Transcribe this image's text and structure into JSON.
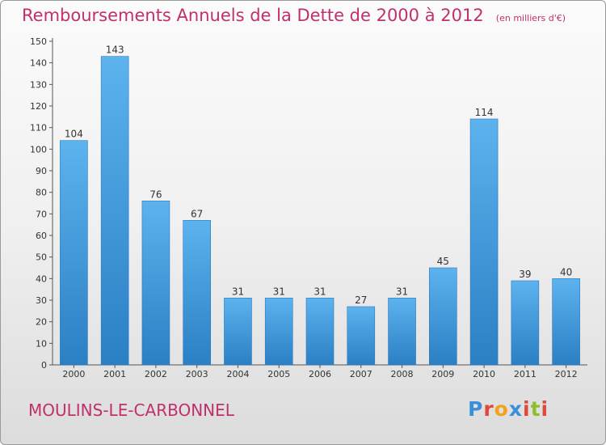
{
  "header": {
    "title": "Remboursements Annuels de la Dette de 2000 à 2012",
    "unit": "(en milliers d'€)"
  },
  "footer": {
    "commune": "MOULINS-LE-CARBONNEL",
    "logo_letters": [
      {
        "char": "P",
        "color": "#3a8fd8"
      },
      {
        "char": "r",
        "color": "#e0483a"
      },
      {
        "char": "o",
        "color": "#f2a21e"
      },
      {
        "char": "x",
        "color": "#3a8fd8"
      },
      {
        "char": "i",
        "color": "#e0483a"
      },
      {
        "char": "t",
        "color": "#8bbf2e"
      },
      {
        "char": "i",
        "color": "#e0483a"
      }
    ]
  },
  "chart_data": {
    "type": "bar",
    "title": "Remboursements Annuels de la Dette de 2000 à 2012",
    "categories": [
      "2000",
      "2001",
      "2002",
      "2003",
      "2004",
      "2005",
      "2006",
      "2007",
      "2008",
      "2009",
      "2010",
      "2011",
      "2012"
    ],
    "values": [
      104,
      143,
      76,
      67,
      31,
      31,
      31,
      27,
      31,
      45,
      114,
      39,
      40
    ],
    "ylim": [
      0,
      150
    ],
    "yticks": [
      0,
      10,
      20,
      30,
      40,
      50,
      60,
      70,
      80,
      90,
      100,
      110,
      120,
      130,
      140,
      150
    ],
    "grid": false,
    "bar_color": "#4a9fe0"
  }
}
